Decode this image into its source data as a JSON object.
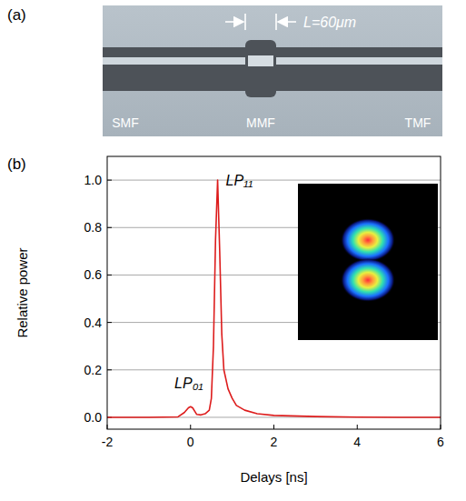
{
  "panel_a": {
    "label": "(a)",
    "length_label": "L=60μm",
    "fibers": [
      "SMF",
      "MMF",
      "TMF"
    ]
  },
  "chart_data": {
    "type": "line",
    "label": "(b)",
    "x_label": "Delays [ns]",
    "y_label": "Relative power",
    "x": [
      -2,
      -1,
      -0.3,
      -0.15,
      -0.05,
      0.0,
      0.05,
      0.15,
      0.25,
      0.35,
      0.45,
      0.5,
      0.55,
      0.6,
      0.65,
      0.7,
      0.75,
      0.8,
      0.9,
      1.0,
      1.1,
      1.3,
      1.6,
      2.0,
      3,
      4,
      5,
      6
    ],
    "values": [
      0,
      0,
      0.002,
      0.02,
      0.04,
      0.045,
      0.04,
      0.012,
      0.01,
      0.015,
      0.03,
      0.08,
      0.3,
      0.75,
      1.0,
      0.7,
      0.35,
      0.2,
      0.12,
      0.08,
      0.05,
      0.03,
      0.015,
      0.008,
      0.003,
      0.001,
      0,
      0
    ],
    "color": "#dd1c1c",
    "xlim": [
      -2,
      6
    ],
    "ylim": [
      -0.05,
      1.1
    ],
    "xticks": [
      -2,
      0,
      2,
      4,
      6
    ],
    "yticks": [
      {
        "value": 0,
        "label": "0.0"
      },
      {
        "value": 0.2,
        "label": "0.2"
      },
      {
        "value": 0.4,
        "label": "0.4"
      },
      {
        "value": 0.6,
        "label": "0.6"
      },
      {
        "value": 0.8,
        "label": "0.8"
      },
      {
        "value": 1.0,
        "label": "1.0"
      }
    ],
    "grid": "y",
    "annotations": [
      {
        "text": "LP₀₁",
        "x": 0.0,
        "y": 0.045
      },
      {
        "text": "LP₁₁",
        "x": 0.65,
        "y": 1.0
      }
    ]
  }
}
